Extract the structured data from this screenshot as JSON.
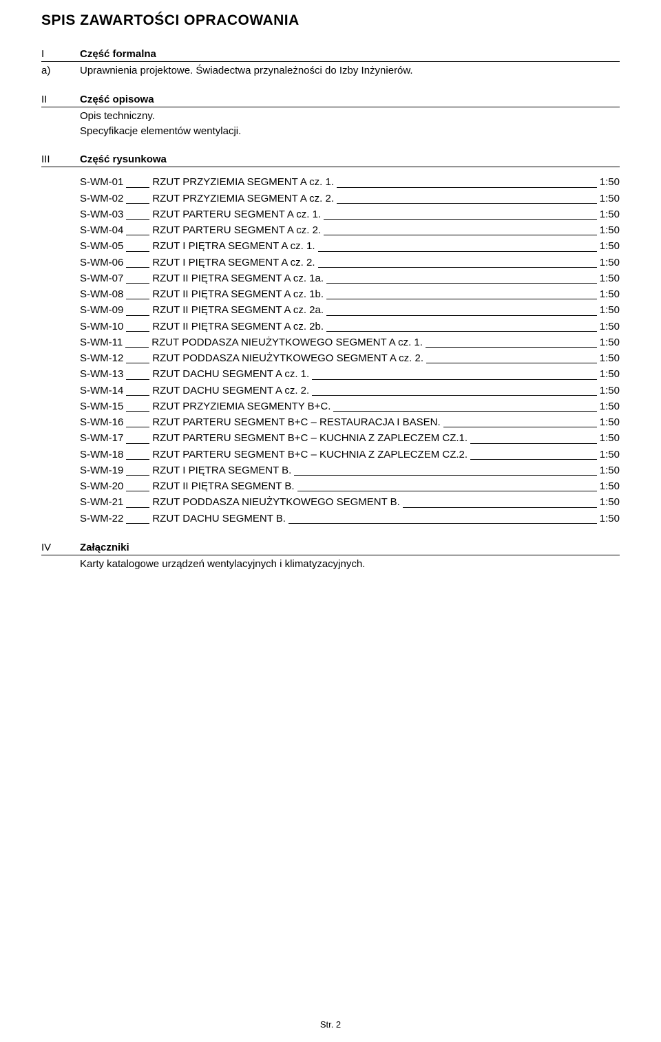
{
  "title": "SPIS ZAWARTOŚCI OPRACOWANIA",
  "sections": {
    "s1": {
      "num": "I",
      "label": "Część formalna"
    },
    "s1a": {
      "letter": "a)",
      "text": "Uprawnienia projektowe. Świadectwa przynależności do Izby Inżynierów."
    },
    "s2": {
      "num": "II",
      "label": "Część opisowa"
    },
    "s2_body1": "Opis techniczny.",
    "s2_body2": "Specyfikacje elementów wentylacji.",
    "s3": {
      "num": "III",
      "label": "Część rysunkowa"
    },
    "s4": {
      "num": "IV",
      "label": "Załączniki"
    },
    "s4_body": "Karty katalogowe urządzeń wentylacyjnych i klimatyzacyjnych."
  },
  "drawings": [
    {
      "code": "S-WM-01",
      "title": "RZUT PRZYZIEMIA SEGMENT A cz. 1.",
      "scale": "1:50"
    },
    {
      "code": "S-WM-02",
      "title": "RZUT PRZYZIEMIA SEGMENT A cz. 2.",
      "scale": "1:50"
    },
    {
      "code": "S-WM-03",
      "title": "RZUT PARTERU SEGMENT A cz. 1.",
      "scale": "1:50"
    },
    {
      "code": "S-WM-04",
      "title": "RZUT PARTERU SEGMENT A cz. 2.",
      "scale": "1:50"
    },
    {
      "code": "S-WM-05",
      "title": "RZUT I PIĘTRA SEGMENT A cz. 1.",
      "scale": "1:50"
    },
    {
      "code": "S-WM-06",
      "title": "RZUT I PIĘTRA SEGMENT A cz. 2.",
      "scale": "1:50"
    },
    {
      "code": "S-WM-07",
      "title": "RZUT II PIĘTRA SEGMENT A cz. 1a.",
      "scale": "1:50"
    },
    {
      "code": "S-WM-08",
      "title": "RZUT II PIĘTRA SEGMENT A cz. 1b.",
      "scale": "1:50"
    },
    {
      "code": "S-WM-09",
      "title": "RZUT II PIĘTRA SEGMENT A cz. 2a.",
      "scale": "1:50"
    },
    {
      "code": "S-WM-10",
      "title": "RZUT II PIĘTRA SEGMENT A cz. 2b.",
      "scale": "1:50"
    },
    {
      "code": "S-WM-11",
      "title": "RZUT PODDASZA NIEUŻYTKOWEGO SEGMENT A cz. 1.",
      "scale": "1:50"
    },
    {
      "code": "S-WM-12",
      "title": "RZUT PODDASZA NIEUŻYTKOWEGO SEGMENT A cz. 2.",
      "scale": "1:50"
    },
    {
      "code": "S-WM-13",
      "title": "RZUT DACHU SEGMENT A cz. 1.",
      "scale": "1:50"
    },
    {
      "code": "S-WM-14",
      "title": "RZUT DACHU SEGMENT A cz. 2.",
      "scale": "1:50"
    },
    {
      "code": "S-WM-15",
      "title": "RZUT PRZYZIEMIA SEGMENTY B+C.",
      "scale": "1:50"
    },
    {
      "code": "S-WM-16",
      "title": "RZUT PARTERU SEGMENT B+C – RESTAURACJA I BASEN.",
      "scale": "1:50"
    },
    {
      "code": "S-WM-17",
      "title": "RZUT PARTERU SEGMENT B+C – KUCHNIA Z ZAPLECZEM CZ.1.",
      "scale": "1:50"
    },
    {
      "code": "S-WM-18",
      "title": "RZUT PARTERU SEGMENT B+C – KUCHNIA Z ZAPLECZEM CZ.2.",
      "scale": "1:50"
    },
    {
      "code": "S-WM-19",
      "title": "RZUT I PIĘTRA SEGMENT B.",
      "scale": "1:50"
    },
    {
      "code": "S-WM-20",
      "title": "RZUT II PIĘTRA SEGMENT B.",
      "scale": "1:50"
    },
    {
      "code": "S-WM-21",
      "title": "RZUT PODDASZA NIEUŻYTKOWEGO SEGMENT B.",
      "scale": "1:50"
    },
    {
      "code": "S-WM-22",
      "title": "RZUT DACHU SEGMENT B.",
      "scale": "1:50"
    }
  ],
  "footer": "Str. 2"
}
